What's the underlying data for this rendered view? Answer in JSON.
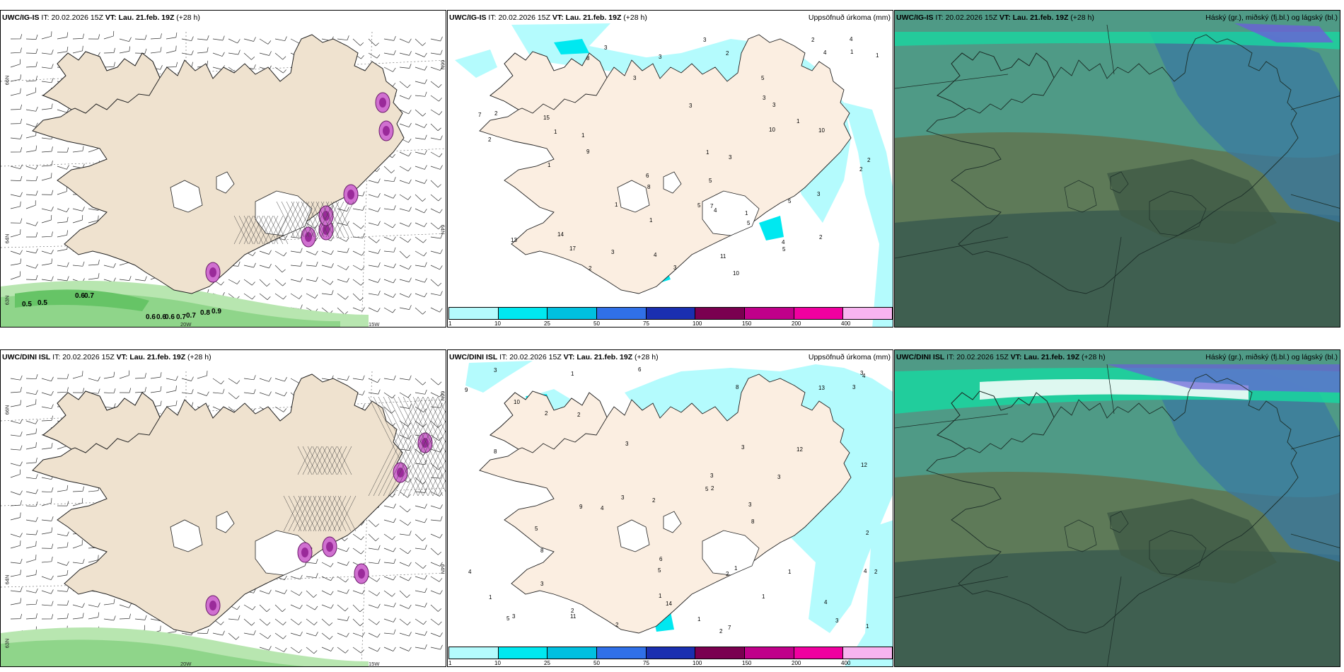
{
  "rows": [
    {
      "model": "UWC/IG-IS",
      "it_label": "IT:",
      "it_value": "20.02.2026 15Z",
      "vt_label": "VT:",
      "vt_value": "Lau. 21.feb. 19Z",
      "lead": "(+28 h)"
    },
    {
      "model": "UWC/DINI ISL",
      "it_label": "IT:",
      "it_value": "20.02.2026 15Z",
      "vt_label": "VT:",
      "vt_value": "Lau. 21.feb. 19Z",
      "lead": "(+28 h)"
    }
  ],
  "precip_title": "Uppsöfnuð úrkoma (mm)",
  "cloud_title": "Háský (gr.), miðský (fj.bl.) og lágský (bl.)",
  "axis_labels": {
    "lat66": "66N",
    "lat64": "64N",
    "lat63": "63N",
    "lon20": "20W",
    "lon15": "15W",
    "lat66r": "66N",
    "lat64r": "64N"
  },
  "legend": {
    "ticks": [
      "1",
      "10",
      "25",
      "50",
      "75",
      "100",
      "150",
      "200",
      "400"
    ],
    "colors": [
      "#b4fbfd",
      "#00e8f0",
      "#00c0e0",
      "#3070e8",
      "#1a2fb0",
      "#7a0050",
      "#c0008a",
      "#f000a0",
      "#f8b4f0"
    ]
  },
  "row1_green_labels": [
    "0.5",
    "0.5",
    "0.6",
    "0.7",
    "0.6",
    "0.6",
    "0.6",
    "0.7",
    "0.7",
    "0.8",
    "0.9"
  ],
  "row1_precip_numbers": [
    "10",
    "8",
    "14",
    "15",
    "1",
    "11",
    "2",
    "9",
    "8",
    "17",
    "13",
    "7",
    "6",
    "7",
    "10",
    "2",
    "2",
    "4",
    "5",
    "10",
    "4",
    "4",
    "2",
    "5",
    "3",
    "3",
    "1",
    "1",
    "3",
    "3",
    "5",
    "4",
    "5",
    "3",
    "3",
    "4",
    "3",
    "2",
    "2",
    "1",
    "3",
    "1",
    "1",
    "2",
    "2",
    "3",
    "5",
    "1",
    "5",
    "1",
    "1",
    "3",
    "1",
    "3"
  ],
  "row2_precip_numbers": [
    "2",
    "2",
    "2",
    "1",
    "1",
    "10",
    "9",
    "3",
    "6",
    "3",
    "13",
    "14",
    "3",
    "5",
    "8",
    "5",
    "8",
    "11",
    "4",
    "9",
    "2",
    "4",
    "3",
    "5",
    "12",
    "5",
    "4",
    "8",
    "3",
    "8",
    "2",
    "7",
    "6",
    "3",
    "3",
    "3",
    "4",
    "1",
    "3",
    "4",
    "2",
    "3",
    "2",
    "3",
    "2",
    "1",
    "2",
    "1",
    "2",
    "1",
    "3",
    "12",
    "1",
    "1"
  ],
  "colors": {
    "land": "#efe2cf",
    "precip_light": "#b4fbfd",
    "green": "#66c466",
    "magenta": "#c040c0",
    "cloud_teal": "#3e8c7e",
    "cloud_blue": "#2f6e8e",
    "cloud_dark": "#3a5a48"
  }
}
